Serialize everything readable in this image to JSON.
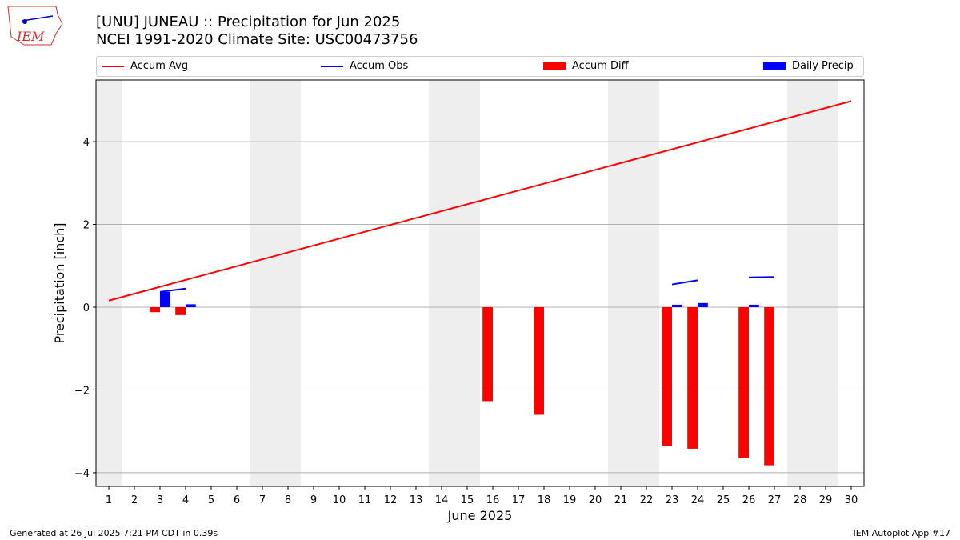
{
  "title": "[UNU] JUNEAU :: Precipitation for Jun 2025",
  "subtitle": "NCEI 1991-2020 Climate Site: USC00473756",
  "logo_text": "IEM",
  "footer_left": "Generated at 26 Jul 2025 7:21 PM CDT in 0.39s",
  "footer_right": "IEM Autoplot App #17",
  "chart_data": {
    "type": "bar",
    "xlabel": "June 2025",
    "ylabel": "Precipitation [inch]",
    "xlim": [
      0.5,
      30.5
    ],
    "ylim": [
      -4.33,
      5.49
    ],
    "yticks": [
      -4,
      -2,
      0,
      2,
      4
    ],
    "xticks": [
      1,
      2,
      3,
      4,
      5,
      6,
      7,
      8,
      9,
      10,
      11,
      12,
      13,
      14,
      15,
      16,
      17,
      18,
      19,
      20,
      21,
      22,
      23,
      24,
      25,
      26,
      27,
      28,
      29,
      30
    ],
    "weekend_shading": [
      [
        0.5,
        1.5
      ],
      [
        6.5,
        8.5
      ],
      [
        13.5,
        15.5
      ],
      [
        20.5,
        22.5
      ],
      [
        27.5,
        29.5
      ]
    ],
    "legend": [
      "Accum Avg",
      "Accum Obs",
      "Accum Diff",
      "Daily Precip"
    ],
    "colors": {
      "avg": "#ff0000",
      "obs": "#0000ff",
      "diff": "#ff0000",
      "precip": "#0000ff"
    },
    "accum_avg": {
      "x": [
        1,
        30
      ],
      "y": [
        0.16,
        4.98
      ]
    },
    "accum_obs": [
      {
        "x": [
          3,
          4
        ],
        "y": [
          0.37,
          0.45
        ]
      },
      {
        "x": [
          23,
          24
        ],
        "y": [
          0.55,
          0.65
        ]
      },
      {
        "x": [
          26,
          27
        ],
        "y": [
          0.72,
          0.73
        ]
      }
    ],
    "accum_diff": {
      "x": [
        3,
        4,
        16,
        18,
        23,
        24,
        26,
        27
      ],
      "y": [
        -0.12,
        -0.19,
        -2.27,
        -2.6,
        -3.35,
        -3.42,
        -3.65,
        -3.82
      ]
    },
    "daily_precip": {
      "x": [
        3,
        4,
        23,
        24,
        26
      ],
      "y": [
        0.37,
        0.07,
        0.06,
        0.1,
        0.06
      ]
    }
  }
}
